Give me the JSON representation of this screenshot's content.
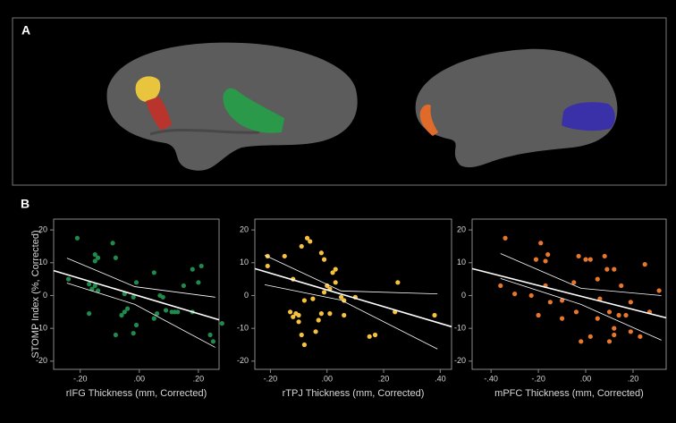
{
  "panels": {
    "a": "A",
    "b": "B"
  },
  "chart_data": [
    {
      "type": "scatter",
      "y_label": "STOMP Index (%, Corrected)",
      "x_label": "rIFG Thickness (mm, Corrected)",
      "color": "#1f8a4c",
      "xlim": [
        -0.29,
        0.27
      ],
      "ylim": [
        -22.5,
        23.3
      ],
      "xticks": [
        {
          "value": -0.2,
          "label": "-.20"
        },
        {
          "value": 0,
          "label": ".00"
        },
        {
          "value": 0.2,
          "label": ".20"
        }
      ],
      "yticks": [
        20,
        10,
        0,
        -10,
        -20
      ],
      "x": [
        -0.21,
        -0.09,
        -0.15,
        -0.14,
        -0.08,
        -0.15,
        -0.24,
        -0.17,
        -0.16,
        -0.14,
        -0.15,
        -0.17,
        -0.08,
        -0.05,
        -0.04,
        -0.05,
        -0.06,
        -0.02,
        -0.01,
        -0.01,
        -0.02,
        0.05,
        0.07,
        0.06,
        0.05,
        0.09,
        0.11,
        0.08,
        0.12,
        0.15,
        0.18,
        0.18,
        0.2,
        0.21,
        0.24,
        0.25,
        0.28,
        0.13
      ],
      "values": [
        17.5,
        16,
        12.5,
        11.5,
        11.5,
        10.5,
        5,
        3.5,
        2,
        1.5,
        3,
        -5.5,
        -12,
        0.5,
        -4,
        -5,
        -6,
        -0.5,
        4,
        -9,
        -11.5,
        7,
        0,
        -5.5,
        -7,
        -4.5,
        -5,
        -0.5,
        -5,
        3,
        -5,
        8,
        4,
        9,
        -12,
        -14,
        -8.5,
        -5
      ],
      "fit": {
        "x": [
          -0.29,
          0.27
        ],
        "y": [
          7.6,
          -7.4
        ]
      },
      "ci_upper": {
        "x": [
          -0.245,
          -0.015,
          0.257
        ],
        "y": [
          11.4,
          2.7,
          -0.5
        ]
      },
      "ci_lower": {
        "x": [
          -0.245,
          -0.015,
          0.257
        ],
        "y": [
          3.8,
          -2.7,
          -15.8
        ]
      }
    },
    {
      "type": "scatter",
      "x_label": "rTPJ Thickness (mm, Corrected)",
      "color": "#f6c23e",
      "xlim": [
        -0.255,
        0.44
      ],
      "ylim": [
        -22.5,
        23.3
      ],
      "xticks": [
        {
          "value": -0.2,
          "label": "-.20"
        },
        {
          "value": 0,
          "label": ".00"
        },
        {
          "value": 0.2,
          "label": ".20"
        },
        {
          "value": 0.4,
          "label": ".40"
        }
      ],
      "yticks": [
        20,
        10,
        0,
        -10,
        -20
      ],
      "x": [
        -0.21,
        -0.21,
        -0.15,
        -0.07,
        -0.09,
        -0.06,
        -0.12,
        -0.02,
        -0.01,
        0.03,
        0.02,
        0.03,
        0.0,
        0.01,
        -0.01,
        0.05,
        0.06,
        -0.05,
        -0.08,
        -0.13,
        -0.11,
        -0.1,
        -0.12,
        -0.1,
        -0.09,
        -0.08,
        -0.04,
        -0.02,
        0.01,
        0.06,
        0.15,
        0.17,
        0.24,
        0.25,
        0.38,
        0.1,
        -0.03
      ],
      "values": [
        12,
        9,
        12,
        17.5,
        15,
        16.5,
        5,
        13,
        11,
        8,
        7,
        4,
        3,
        2,
        1,
        -0.5,
        -1.5,
        -1,
        -1.5,
        -5,
        -5.5,
        -6,
        -6.5,
        -8,
        -12,
        -15,
        -11,
        -5.5,
        -5.5,
        -6,
        -12.5,
        -12,
        -5,
        4,
        -6,
        -0.5,
        -7.5
      ],
      "fit": {
        "x": [
          -0.255,
          0.44
        ],
        "y": [
          8.2,
          -9.5
        ]
      },
      "ci_upper": {
        "x": [
          -0.22,
          0.05,
          0.39
        ],
        "y": [
          12.3,
          1.4,
          0.5
        ]
      },
      "ci_lower": {
        "x": [
          -0.22,
          0.05,
          0.39
        ],
        "y": [
          3.3,
          -1.4,
          -16.3
        ]
      }
    },
    {
      "type": "scatter",
      "x_label": "mPFC Thickness (mm, Corrected)",
      "color": "#e8762c",
      "xlim": [
        -0.48,
        0.34
      ],
      "ylim": [
        -22.5,
        23.3
      ],
      "xticks": [
        {
          "value": -0.4,
          "label": "-.40"
        },
        {
          "value": -0.2,
          "label": "-.20"
        },
        {
          "value": 0,
          "label": ".00"
        },
        {
          "value": 0.2,
          "label": ".20"
        }
      ],
      "yticks": [
        20,
        10,
        0,
        -10,
        -20
      ],
      "x": [
        -0.34,
        -0.19,
        -0.16,
        -0.17,
        -0.21,
        -0.03,
        0.0,
        0.02,
        0.08,
        0.09,
        0.12,
        0.15,
        0.05,
        0.06,
        -0.05,
        -0.17,
        -0.36,
        -0.3,
        -0.23,
        -0.15,
        -0.1,
        -0.2,
        -0.1,
        -0.04,
        -0.02,
        0.02,
        0.05,
        0.1,
        0.1,
        0.12,
        0.14,
        0.17,
        0.19,
        0.19,
        0.23,
        0.25,
        0.27,
        0.31,
        0.12
      ],
      "values": [
        17.5,
        16,
        12.5,
        10.5,
        11,
        12,
        11,
        11,
        12,
        8,
        8,
        3,
        5,
        -1,
        4,
        3,
        3,
        0.5,
        0,
        -2,
        -1.5,
        -6,
        -7,
        -5,
        -14,
        -12.5,
        -7,
        -5,
        -14,
        -10,
        -6,
        -6,
        -11,
        -2,
        -12.5,
        9.5,
        -5,
        1.5,
        -12
      ],
      "fit": {
        "x": [
          -0.48,
          0.34
        ],
        "y": [
          8.2,
          -6.8
        ]
      },
      "ci_upper": {
        "x": [
          -0.36,
          -0.02,
          0.32
        ],
        "y": [
          12.8,
          2.2,
          0
        ]
      },
      "ci_lower": {
        "x": [
          -0.36,
          -0.02,
          0.32
        ],
        "y": [
          5.2,
          -2.7,
          -13.6
        ]
      }
    }
  ]
}
